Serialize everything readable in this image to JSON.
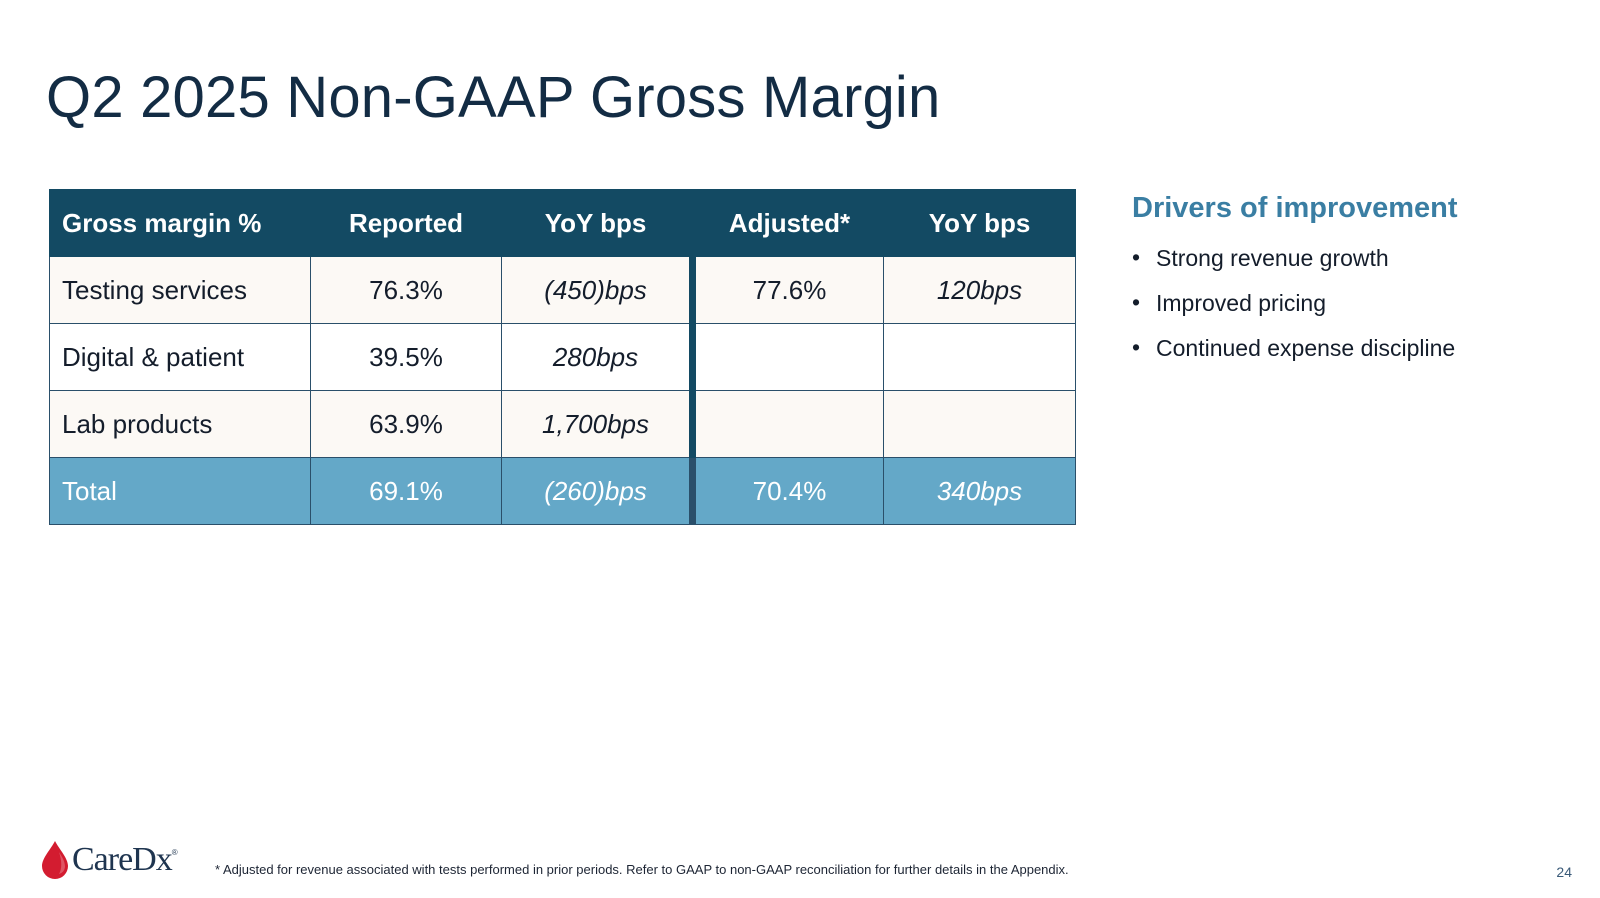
{
  "slide": {
    "title": "Q2 2025 Non-GAAP Gross Margin",
    "page_number": "24"
  },
  "table": {
    "headers": [
      "Gross margin %",
      "Reported",
      "YoY bps",
      "Adjusted*",
      "YoY bps"
    ],
    "rows": [
      [
        "Testing services",
        "76.3%",
        "(450)bps",
        "77.6%",
        "120bps"
      ],
      [
        "Digital & patient",
        "39.5%",
        "280bps",
        "",
        ""
      ],
      [
        "Lab products",
        "63.9%",
        "1,700bps",
        "",
        ""
      ]
    ],
    "total": [
      "Total",
      "69.1%",
      "(260)bps",
      "70.4%",
      "340bps"
    ]
  },
  "drivers": {
    "title": "Drivers of improvement",
    "bullet": "•",
    "items": [
      "Strong revenue growth",
      "Improved pricing",
      "Continued expense discipline"
    ]
  },
  "footer": {
    "logo_text": "CareDx",
    "logo_tm": "®",
    "footnote": "* Adjusted for revenue associated with tests performed in prior periods. Refer to GAAP to non-GAAP reconciliation for further details in the Appendix."
  },
  "colors": {
    "title": "#132c44",
    "header_bg": "#134a63",
    "total_bg": "#64a8c8",
    "accent": "#3a7ea3",
    "logo_drop": "#d31c30"
  },
  "icons": {
    "logo": "blood-drop-icon"
  }
}
